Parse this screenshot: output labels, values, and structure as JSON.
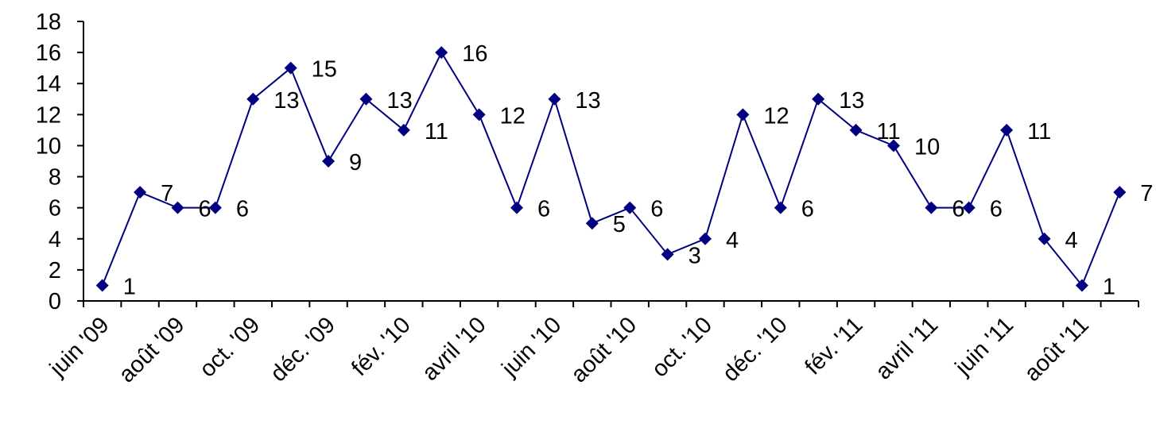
{
  "chart_data": {
    "type": "line",
    "categories": [
      "juin '09",
      null,
      "août '09",
      null,
      "oct. '09",
      null,
      "déc. '09",
      null,
      "fév. '10",
      null,
      "avril '10",
      null,
      "juin '10",
      null,
      "août '10",
      null,
      "oct. '10",
      null,
      "déc. '10",
      null,
      "fév. '11",
      null,
      "avril '11",
      null,
      "juin '11",
      null,
      "août '11",
      null
    ],
    "series": [
      {
        "color": "#000080",
        "values": [
          1,
          7,
          6,
          6,
          13,
          15,
          9,
          13,
          11,
          16,
          12,
          6,
          13,
          5,
          6,
          3,
          4,
          12,
          6,
          13,
          11,
          10,
          6,
          6,
          11,
          4,
          1,
          7
        ]
      }
    ],
    "ylim": [
      0,
      18
    ],
    "yticks": [
      0,
      2,
      4,
      6,
      8,
      10,
      12,
      14,
      16,
      18
    ],
    "grid": false,
    "data_labels": true
  }
}
